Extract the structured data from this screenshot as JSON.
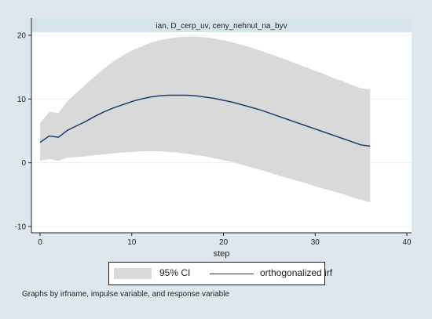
{
  "panel_title": "ian, D_cerp_uv, ceny_nehnut_na_byv",
  "note": "Graphs by irfname, impulse variable, and response variable",
  "legend": {
    "ci_label": "95% CI",
    "irf_label": "orthogonalized irf"
  },
  "colors": {
    "background": "#dfe7ee",
    "plot_area": "#ffffff",
    "ci_band": "#d9d9d9",
    "irf_line": "#1b3d6e",
    "header": "#d5e4ea"
  },
  "chart_data": {
    "type": "line",
    "title": "ian, D_cerp_uv, ceny_nehnut_na_byv",
    "xlabel": "step",
    "ylabel": "",
    "xlim": [
      0,
      40
    ],
    "ylim": [
      -10,
      20
    ],
    "xticks": [
      0,
      10,
      20,
      30,
      40
    ],
    "yticks": [
      -10,
      0,
      10,
      20
    ],
    "grid": true,
    "legend_position": "bottom",
    "x": [
      0,
      1,
      2,
      3,
      4,
      5,
      6,
      7,
      8,
      9,
      10,
      11,
      12,
      13,
      14,
      15,
      16,
      17,
      18,
      19,
      20,
      21,
      22,
      23,
      24,
      25,
      26,
      27,
      28,
      29,
      30,
      31,
      32,
      33,
      34,
      35,
      36
    ],
    "series": [
      {
        "name": "orthogonalized irf",
        "values": [
          3.2,
          4.2,
          4.0,
          5.1,
          5.8,
          6.5,
          7.3,
          8.0,
          8.6,
          9.1,
          9.6,
          10.0,
          10.3,
          10.5,
          10.6,
          10.6,
          10.6,
          10.5,
          10.3,
          10.1,
          9.8,
          9.5,
          9.1,
          8.7,
          8.3,
          7.8,
          7.3,
          6.8,
          6.3,
          5.8,
          5.3,
          4.8,
          4.3,
          3.8,
          3.3,
          2.8,
          2.6
        ]
      },
      {
        "name": "95% CI",
        "lower": [
          0.3,
          0.6,
          0.3,
          0.8,
          0.9,
          1.0,
          1.2,
          1.3,
          1.5,
          1.6,
          1.7,
          1.8,
          1.8,
          1.8,
          1.7,
          1.6,
          1.4,
          1.2,
          1.0,
          0.7,
          0.4,
          0.1,
          -0.3,
          -0.7,
          -1.1,
          -1.5,
          -2.0,
          -2.4,
          -2.8,
          -3.2,
          -3.7,
          -4.1,
          -4.5,
          -4.9,
          -5.4,
          -5.8,
          -6.2
        ],
        "upper": [
          6.2,
          8.0,
          7.8,
          9.7,
          11.0,
          12.3,
          13.6,
          14.8,
          15.9,
          16.8,
          17.6,
          18.2,
          18.8,
          19.2,
          19.5,
          19.7,
          19.8,
          19.8,
          19.7,
          19.5,
          19.2,
          18.9,
          18.5,
          18.1,
          17.6,
          17.1,
          16.6,
          16.1,
          15.5,
          15.0,
          14.4,
          13.9,
          13.3,
          12.8,
          12.2,
          11.7,
          11.5
        ]
      }
    ]
  }
}
